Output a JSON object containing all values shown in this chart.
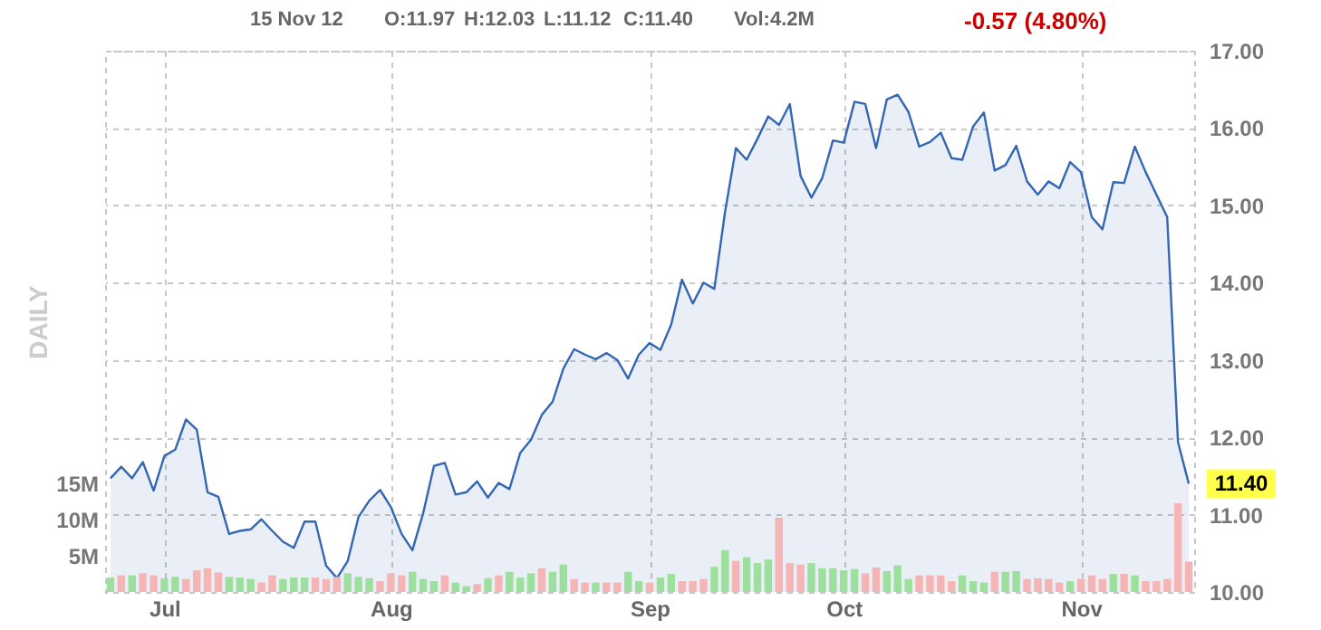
{
  "chart_data": {
    "type": "area",
    "annotations": [
      "15 Nov 12",
      "O:11.97",
      "H:12.03",
      "L:11.12",
      "C:11.40",
      "Vol:4.2M",
      "-0.57 (4.80%)",
      "11.40"
    ],
    "ylabel": "DAILY",
    "categories": [
      null,
      null,
      null,
      null,
      null,
      "Jul",
      null,
      null,
      null,
      null,
      null,
      null,
      null,
      null,
      null,
      null,
      null,
      null,
      null,
      null,
      null,
      null,
      null,
      null,
      null,
      null,
      "Aug",
      null,
      null,
      null,
      null,
      null,
      null,
      null,
      null,
      null,
      null,
      null,
      null,
      null,
      null,
      null,
      null,
      null,
      null,
      null,
      null,
      null,
      null,
      null,
      "Sep",
      null,
      null,
      null,
      null,
      null,
      null,
      null,
      null,
      null,
      null,
      null,
      null,
      null,
      null,
      null,
      null,
      null,
      "Oct",
      null,
      null,
      null,
      null,
      null,
      null,
      null,
      null,
      null,
      null,
      null,
      null,
      null,
      null,
      null,
      null,
      null,
      null,
      null,
      null,
      null,
      "Nov",
      null,
      null,
      null,
      null,
      null,
      null,
      null,
      null,
      null,
      null
    ],
    "series": [
      {
        "axis": "y2",
        "color": "#3366b3",
        "values": [
          11.47,
          11.62,
          11.47,
          11.68,
          11.31,
          11.76,
          11.84,
          12.23,
          12.1,
          11.29,
          11.23,
          10.75,
          10.79,
          10.81,
          10.94,
          10.79,
          10.65,
          10.57,
          10.91,
          10.91,
          10.34,
          10.18,
          10.4,
          10.97,
          11.18,
          11.32,
          11.1,
          10.75,
          10.54,
          11.02,
          11.63,
          11.67,
          11.26,
          11.29,
          11.43,
          11.22,
          11.41,
          11.33,
          11.8,
          11.97,
          12.29,
          12.46,
          12.89,
          13.14,
          13.07,
          13.01,
          13.09,
          13.0,
          12.76,
          13.07,
          13.22,
          13.13,
          13.46,
          14.04,
          13.73,
          14.0,
          13.92,
          14.92,
          15.74,
          15.59,
          15.86,
          16.15,
          16.04,
          16.31,
          15.38,
          15.1,
          15.35,
          15.84,
          15.81,
          16.34,
          16.31,
          15.74,
          16.37,
          16.43,
          16.21,
          15.76,
          15.82,
          15.94,
          15.61,
          15.59,
          16.02,
          16.2,
          15.45,
          15.52,
          15.77,
          15.31,
          15.14,
          15.31,
          15.22,
          15.56,
          15.43,
          14.85,
          14.69,
          15.3,
          15.29,
          15.76,
          15.43,
          15.14,
          14.85,
          11.94,
          11.4
        ]
      },
      {
        "type": "bar",
        "axis": "y",
        "values": [
          2.0,
          2.3,
          2.3,
          2.6,
          2.3,
          1.9,
          2.1,
          1.8,
          3.0,
          3.3,
          2.7,
          2.1,
          2.0,
          1.8,
          1.3,
          2.3,
          1.8,
          2.0,
          2.0,
          2.0,
          1.8,
          2.1,
          2.6,
          2.1,
          1.9,
          1.5,
          2.6,
          2.3,
          2.8,
          1.8,
          1.5,
          2.3,
          1.3,
          0.8,
          1.1,
          1.9,
          2.3,
          2.8,
          2.0,
          2.6,
          3.3,
          2.8,
          3.8,
          1.8,
          1.3,
          1.3,
          1.3,
          1.3,
          2.8,
          1.5,
          1.3,
          2.0,
          2.5,
          1.5,
          1.5,
          1.8,
          3.5,
          5.8,
          4.3,
          4.8,
          4.0,
          4.5,
          10.3,
          4.0,
          3.8,
          4.0,
          3.3,
          3.3,
          3.0,
          3.2,
          2.6,
          3.4,
          2.9,
          3.7,
          1.8,
          2.3,
          2.3,
          2.3,
          1.5,
          2.3,
          1.5,
          1.3,
          2.8,
          2.8,
          2.9,
          1.8,
          1.9,
          1.8,
          1.3,
          1.5,
          1.8,
          2.3,
          1.8,
          2.5,
          2.5,
          2.3,
          1.5,
          1.5,
          1.8,
          12.3,
          4.2
        ],
        "colors": [
          "#9ddf9d",
          "#f5b5b5",
          "#9ddf9d",
          "#f5b5b5",
          "#f5b5b5",
          "#9ddf9d",
          "#9ddf9d",
          "#f5b5b5",
          "#f5b5b5",
          "#f5b5b5",
          "#f5b5b5",
          "#9ddf9d",
          "#9ddf9d",
          "#9ddf9d",
          "#f5b5b5",
          "#f5b5b5",
          "#9ddf9d",
          "#9ddf9d",
          "#9ddf9d",
          "#f5b5b5",
          "#f5b5b5",
          "#f5b5b5",
          "#9ddf9d",
          "#9ddf9d",
          "#9ddf9d",
          "#f5b5b5",
          "#f5b5b5",
          "#f5b5b5",
          "#9ddf9d",
          "#9ddf9d",
          "#9ddf9d",
          "#f5b5b5",
          "#9ddf9d",
          "#9ddf9d",
          "#f5b5b5",
          "#9ddf9d",
          "#f5b5b5",
          "#9ddf9d",
          "#9ddf9d",
          "#9ddf9d",
          "#f5b5b5",
          "#9ddf9d",
          "#9ddf9d",
          "#f5b5b5",
          "#f5b5b5",
          "#9ddf9d",
          "#f5b5b5",
          "#f5b5b5",
          "#9ddf9d",
          "#9ddf9d",
          "#f5b5b5",
          "#9ddf9d",
          "#9ddf9d",
          "#f5b5b5",
          "#f5b5b5",
          "#f5b5b5",
          "#9ddf9d",
          "#9ddf9d",
          "#f5b5b5",
          "#9ddf9d",
          "#9ddf9d",
          "#9ddf9d",
          "#f5b5b5",
          "#f5b5b5",
          "#f5b5b5",
          "#9ddf9d",
          "#9ddf9d",
          "#9ddf9d",
          "#9ddf9d",
          "#9ddf9d",
          "#f5b5b5",
          "#f5b5b5",
          "#9ddf9d",
          "#9ddf9d",
          "#9ddf9d",
          "#f5b5b5",
          "#f5b5b5",
          "#f5b5b5",
          "#f5b5b5",
          "#9ddf9d",
          "#9ddf9d",
          "#9ddf9d",
          "#f5b5b5",
          "#9ddf9d",
          "#9ddf9d",
          "#f5b5b5",
          "#f5b5b5",
          "#f5b5b5",
          "#f5b5b5",
          "#9ddf9d",
          "#f5b5b5",
          "#f5b5b5",
          "#f5b5b5",
          "#9ddf9d",
          "#f5b5b5",
          "#9ddf9d",
          "#f5b5b5",
          "#f5b5b5",
          "#f5b5b5",
          "#f5b5b5",
          "#f5b5b5"
        ]
      }
    ],
    "ylim": [
      0,
      75
    ],
    "yticks": [
      {
        "value": 5,
        "label": "5M"
      },
      {
        "value": 10,
        "label": "10M"
      },
      {
        "value": 15,
        "label": "15M"
      }
    ],
    "y2lim": [
      10,
      17
    ],
    "y2ticks": [
      {
        "value": 10,
        "label": "10.00"
      },
      {
        "value": 11,
        "label": "11.00"
      },
      {
        "value": 12,
        "label": "12.00"
      },
      {
        "value": 13,
        "label": "13.00"
      },
      {
        "value": 14,
        "label": "14.00"
      },
      {
        "value": 15,
        "label": "15.00"
      },
      {
        "value": 16,
        "label": "16.00"
      },
      {
        "value": 17,
        "label": "17.00"
      }
    ],
    "grid": true
  }
}
